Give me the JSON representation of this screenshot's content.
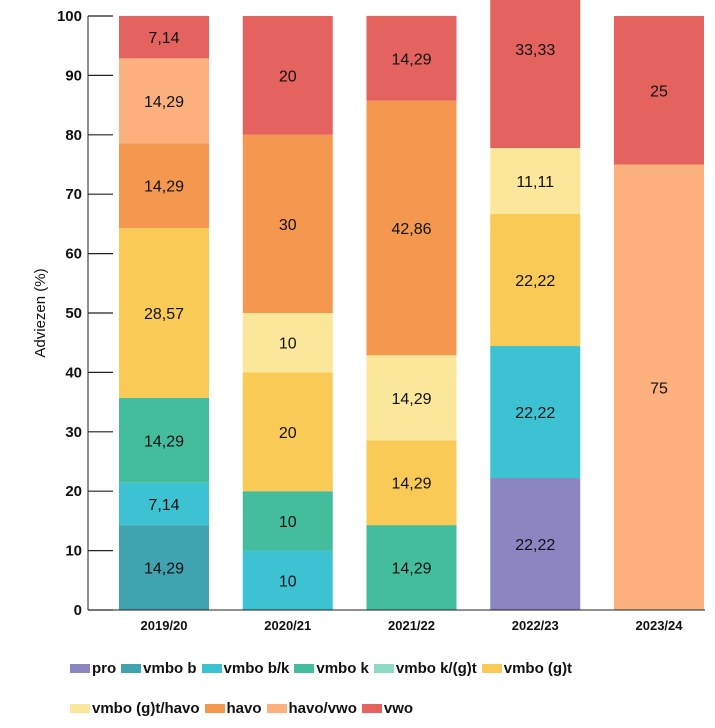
{
  "chart_data": {
    "type": "bar",
    "stacked": true,
    "categories": [
      "2019/20",
      "2020/21",
      "2021/22",
      "2022/23",
      "2023/24"
    ],
    "ylabel": "Adviezen (%)",
    "xlabel": "",
    "ylim": [
      0,
      100
    ],
    "yticks": [
      "0",
      "10",
      "20",
      "30",
      "40",
      "50",
      "60",
      "70",
      "80",
      "90",
      "100"
    ],
    "grid": false,
    "legend_position": "bottom",
    "series": [
      {
        "name": "pro",
        "color": "#8b86c2",
        "values": [
          null,
          null,
          null,
          22.22,
          null
        ],
        "labels": [
          "",
          "",
          "",
          "22,22",
          ""
        ]
      },
      {
        "name": "vmbo b",
        "color": "#3fa3b0",
        "values": [
          14.29,
          null,
          null,
          null,
          null
        ],
        "labels": [
          "14,29",
          "",
          "",
          "",
          ""
        ]
      },
      {
        "name": "vmbo b/k",
        "color": "#3cc2d2",
        "values": [
          7.14,
          10,
          null,
          22.22,
          null
        ],
        "labels": [
          "7,14",
          "10",
          "",
          "22,22",
          ""
        ]
      },
      {
        "name": "vmbo k",
        "color": "#43bd9c",
        "values": [
          14.29,
          10,
          14.29,
          null,
          null
        ],
        "labels": [
          "14,29",
          "10",
          "14,29",
          "",
          ""
        ]
      },
      {
        "name": "vmbo k/(g)t",
        "color": "#8ed9c2",
        "values": [
          null,
          null,
          null,
          null,
          null
        ],
        "labels": [
          "",
          "",
          "",
          "",
          ""
        ]
      },
      {
        "name": "vmbo (g)t",
        "color": "#f9ca55",
        "values": [
          28.57,
          20,
          14.29,
          22.22,
          null
        ],
        "labels": [
          "28,57",
          "20",
          "14,29",
          "22,22",
          ""
        ]
      },
      {
        "name": "vmbo (g)t/havo",
        "color": "#fbe79a",
        "values": [
          null,
          10,
          14.29,
          11.11,
          null
        ],
        "labels": [
          "",
          "10",
          "14,29",
          "11,11",
          ""
        ]
      },
      {
        "name": "havo",
        "color": "#f4984f",
        "values": [
          14.29,
          30,
          42.86,
          null,
          null
        ],
        "labels": [
          "14,29",
          "30",
          "42,86",
          "",
          ""
        ]
      },
      {
        "name": "havo/vwo",
        "color": "#fbb07e",
        "values": [
          14.29,
          null,
          null,
          null,
          75
        ],
        "labels": [
          "14,29",
          "",
          "",
          "",
          "75"
        ]
      },
      {
        "name": "vwo",
        "color": "#e4635e",
        "values": [
          7.14,
          20,
          14.29,
          33.33,
          25
        ],
        "labels": [
          "7,14",
          "20",
          "14,29",
          "33,33",
          "25"
        ]
      }
    ]
  }
}
